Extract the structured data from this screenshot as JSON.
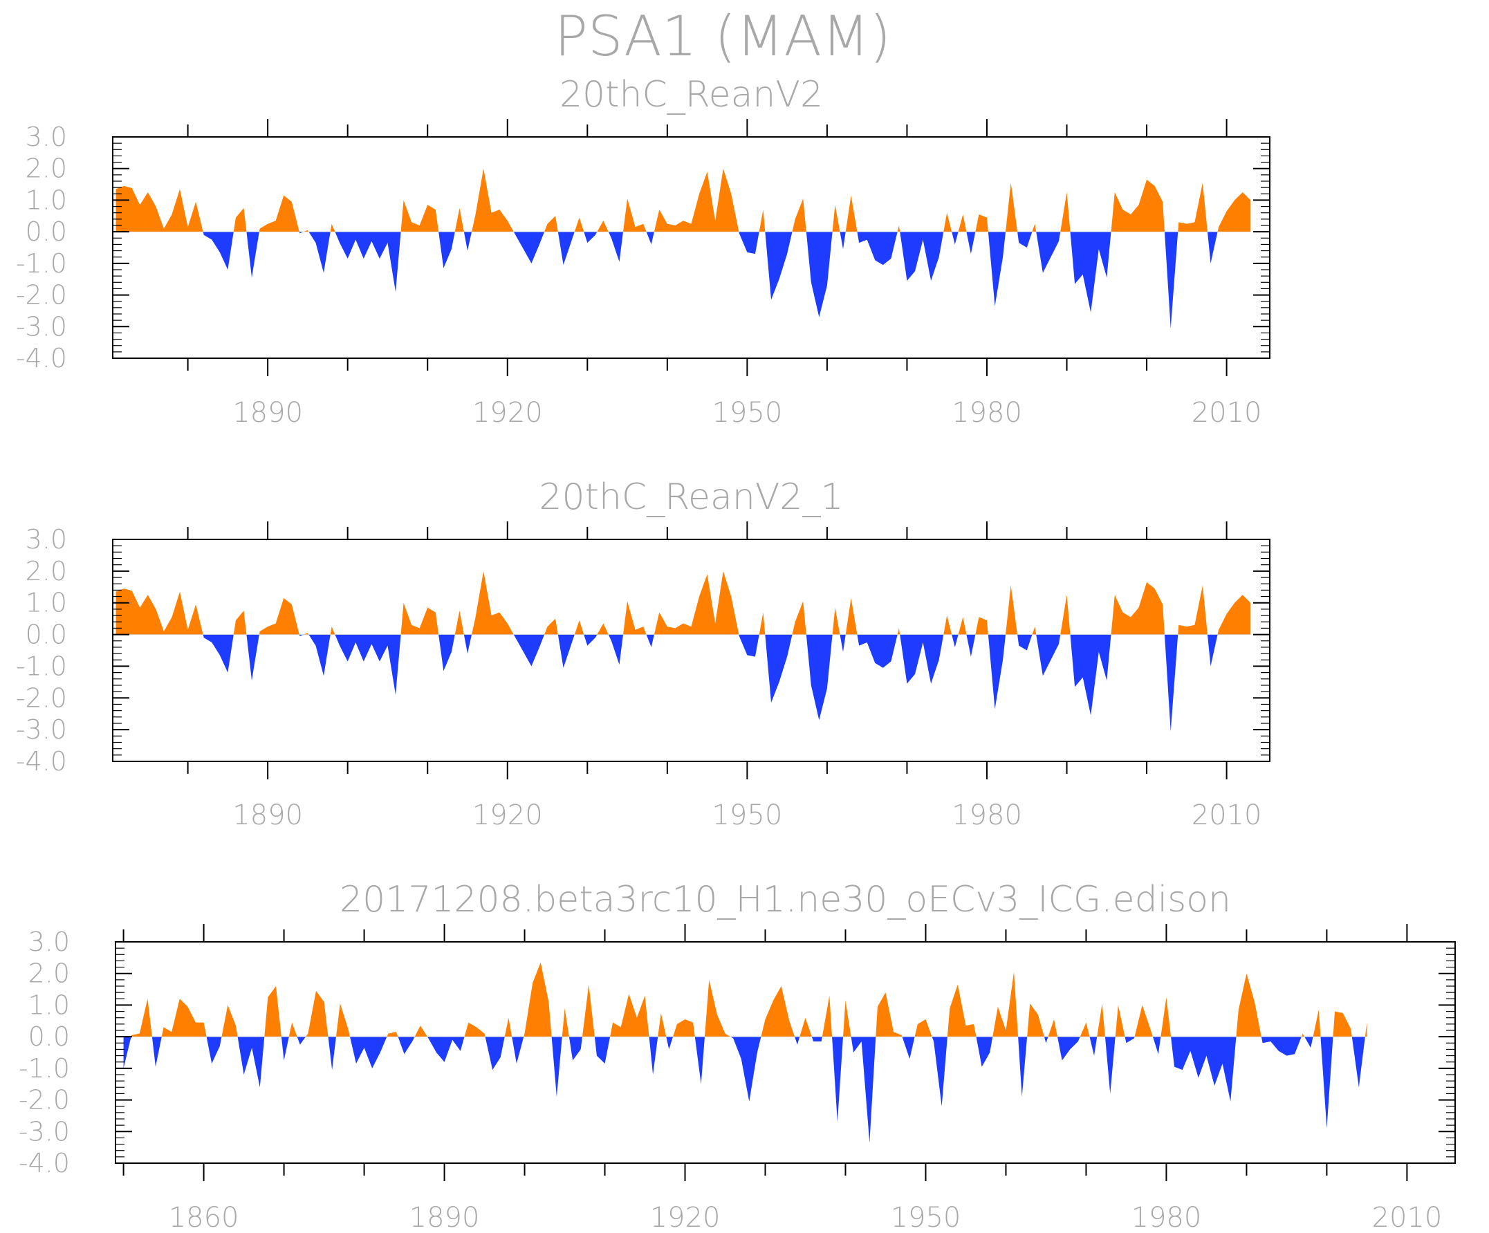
{
  "chart_data": {
    "type": "area",
    "title": "PSA1  (MAM)",
    "colors": {
      "positive": "#ff8000",
      "negative": "#1e3cff",
      "text": "#a8a8a8"
    },
    "panels": [
      {
        "title": "20thC_ReanV2",
        "xlabel": "",
        "ylabel": "",
        "ylim": [
          -4.0,
          3.0
        ],
        "yticks": [
          "3.0",
          "2.0",
          "1.0",
          "0.0",
          "-1.0",
          "-2.0",
          "-3.0",
          "-4.0"
        ],
        "xlim": [
          1870.6,
          2015.4
        ],
        "xticks": [
          "1890",
          "1920",
          "1950",
          "1980",
          "2010"
        ],
        "years_start": 1871,
        "values": [
          1.35,
          1.45,
          1.38,
          0.85,
          1.25,
          0.8,
          0.1,
          0.55,
          1.35,
          0.15,
          0.95,
          -0.1,
          -0.25,
          -0.65,
          -1.2,
          0.45,
          0.75,
          -1.45,
          0.1,
          0.25,
          0.35,
          1.15,
          0.95,
          -0.05,
          0.05,
          -0.35,
          -1.3,
          0.25,
          -0.35,
          -0.85,
          -0.25,
          -0.85,
          -0.3,
          -0.85,
          -0.35,
          -1.9,
          1.0,
          0.3,
          0.2,
          0.85,
          0.7,
          -1.15,
          -0.55,
          0.75,
          -0.6,
          0.55,
          2.0,
          0.6,
          0.7,
          0.35,
          -0.1,
          -0.55,
          -1.0,
          -0.4,
          0.25,
          0.5,
          -1.05,
          -0.3,
          0.45,
          -0.35,
          -0.1,
          0.35,
          -0.2,
          -0.95,
          1.05,
          0.15,
          0.25,
          -0.4,
          0.7,
          0.25,
          0.2,
          0.35,
          0.25,
          1.2,
          1.9,
          0.35,
          2.0,
          1.2,
          -0.05,
          -0.65,
          -0.7,
          0.7,
          -2.15,
          -1.5,
          -0.7,
          0.4,
          1.05,
          -1.6,
          -2.7,
          -1.7,
          0.85,
          -0.55,
          1.15,
          -0.35,
          -0.25,
          -0.9,
          -1.05,
          -0.85,
          0.2,
          -1.55,
          -1.25,
          -0.25,
          -1.55,
          -0.8,
          0.6,
          -0.4,
          0.55,
          -0.7,
          0.55,
          0.45,
          -2.35,
          -0.8,
          1.55,
          -0.35,
          -0.5,
          0.25,
          -1.3,
          -0.8,
          -0.3,
          1.25,
          -1.65,
          -1.35,
          -2.55,
          -0.55,
          -1.45,
          1.25,
          0.7,
          0.55,
          0.85,
          1.65,
          1.45,
          0.95,
          -3.05,
          0.3,
          0.25,
          0.3,
          1.55,
          -1.0,
          0.15,
          0.65,
          1.0,
          1.25,
          1.0
        ]
      },
      {
        "title": "20thC_ReanV2_1",
        "xlabel": "",
        "ylabel": "",
        "ylim": [
          -4.0,
          3.0
        ],
        "yticks": [
          "3.0",
          "2.0",
          "1.0",
          "0.0",
          "-1.0",
          "-2.0",
          "-3.0",
          "-4.0"
        ],
        "xlim": [
          1870.6,
          2015.4
        ],
        "xticks": [
          "1890",
          "1920",
          "1950",
          "1980",
          "2010"
        ],
        "years_start": 1871,
        "values": [
          1.35,
          1.45,
          1.38,
          0.85,
          1.25,
          0.8,
          0.1,
          0.55,
          1.35,
          0.15,
          0.95,
          -0.1,
          -0.25,
          -0.65,
          -1.2,
          0.45,
          0.75,
          -1.45,
          0.1,
          0.25,
          0.35,
          1.15,
          0.95,
          -0.05,
          0.05,
          -0.35,
          -1.3,
          0.25,
          -0.35,
          -0.85,
          -0.25,
          -0.85,
          -0.3,
          -0.85,
          -0.35,
          -1.9,
          1.0,
          0.3,
          0.2,
          0.85,
          0.7,
          -1.15,
          -0.55,
          0.75,
          -0.6,
          0.55,
          2.0,
          0.6,
          0.7,
          0.35,
          -0.1,
          -0.55,
          -1.0,
          -0.4,
          0.25,
          0.5,
          -1.05,
          -0.3,
          0.45,
          -0.35,
          -0.1,
          0.35,
          -0.2,
          -0.95,
          1.05,
          0.15,
          0.25,
          -0.4,
          0.7,
          0.25,
          0.2,
          0.35,
          0.25,
          1.2,
          1.9,
          0.35,
          2.0,
          1.2,
          -0.05,
          -0.65,
          -0.7,
          0.7,
          -2.15,
          -1.5,
          -0.7,
          0.4,
          1.05,
          -1.6,
          -2.7,
          -1.7,
          0.85,
          -0.55,
          1.15,
          -0.35,
          -0.25,
          -0.9,
          -1.05,
          -0.85,
          0.2,
          -1.55,
          -1.25,
          -0.25,
          -1.55,
          -0.8,
          0.6,
          -0.4,
          0.55,
          -0.7,
          0.55,
          0.45,
          -2.35,
          -0.8,
          1.55,
          -0.35,
          -0.5,
          0.25,
          -1.3,
          -0.8,
          -0.3,
          1.25,
          -1.65,
          -1.35,
          -2.55,
          -0.55,
          -1.45,
          1.25,
          0.7,
          0.55,
          0.85,
          1.65,
          1.45,
          0.95,
          -3.05,
          0.3,
          0.25,
          0.3,
          1.55,
          -1.0,
          0.15,
          0.65,
          1.0,
          1.25,
          1.0
        ]
      },
      {
        "title": "20171208.beta3rc10_H1.ne30_oECv3_ICG.edison",
        "xlabel": "",
        "ylabel": "",
        "ylim": [
          -4.0,
          3.0
        ],
        "yticks": [
          "3.0",
          "2.0",
          "1.0",
          "0.0",
          "-1.0",
          "-2.0",
          "-3.0",
          "-4.0"
        ],
        "xlim": [
          1849.0,
          2016.0
        ],
        "xticks": [
          "1860",
          "1890",
          "1920",
          "1950",
          "1980",
          "2010"
        ],
        "years_start": 1850,
        "values": [
          -1.0,
          0.05,
          0.1,
          1.2,
          -0.95,
          0.3,
          0.15,
          1.2,
          0.95,
          0.45,
          0.45,
          -0.85,
          -0.3,
          1.0,
          0.35,
          -1.2,
          -0.35,
          -1.6,
          1.25,
          1.6,
          -0.75,
          0.45,
          -0.25,
          0.1,
          1.45,
          1.1,
          -1.05,
          1.05,
          0.25,
          -0.85,
          -0.35,
          -1.0,
          -0.5,
          0.1,
          0.15,
          -0.55,
          -0.15,
          0.35,
          -0.05,
          -0.5,
          -0.8,
          -0.1,
          -0.45,
          0.45,
          0.3,
          0.1,
          -1.05,
          -0.65,
          0.6,
          -0.85,
          0.1,
          1.7,
          2.35,
          1.1,
          -1.9,
          0.9,
          -0.75,
          -0.4,
          1.65,
          -0.6,
          -0.85,
          0.45,
          0.3,
          1.35,
          0.6,
          1.3,
          -1.2,
          0.75,
          -0.4,
          0.4,
          0.55,
          0.45,
          -1.5,
          1.8,
          0.7,
          0.1,
          -0.05,
          -0.7,
          -2.05,
          -0.5,
          0.55,
          1.15,
          1.6,
          0.5,
          -0.25,
          0.6,
          -0.15,
          -0.15,
          1.3,
          -2.7,
          1.15,
          -0.5,
          -0.15,
          -3.35,
          0.95,
          1.4,
          0.15,
          0.05,
          -0.7,
          0.4,
          0.55,
          -0.15,
          -2.2,
          0.9,
          1.65,
          0.35,
          0.4,
          -0.95,
          -0.5,
          0.95,
          0.2,
          2.05,
          -1.9,
          1.05,
          0.7,
          -0.2,
          0.55,
          -0.75,
          -0.4,
          -0.15,
          0.45,
          -0.6,
          1.05,
          -1.8,
          1.0,
          -0.2,
          -0.05,
          1.0,
          0.25,
          -0.55,
          1.25,
          -0.95,
          -1.05,
          -0.45,
          -1.3,
          -0.6,
          -1.55,
          -0.85,
          -2.05,
          0.85,
          2.0,
          1.1,
          -0.2,
          -0.15,
          -0.45,
          -0.6,
          -0.55,
          0.1,
          -0.35,
          0.85,
          -2.9,
          0.8,
          0.75,
          0.25,
          -1.6,
          0.45
        ]
      }
    ]
  }
}
